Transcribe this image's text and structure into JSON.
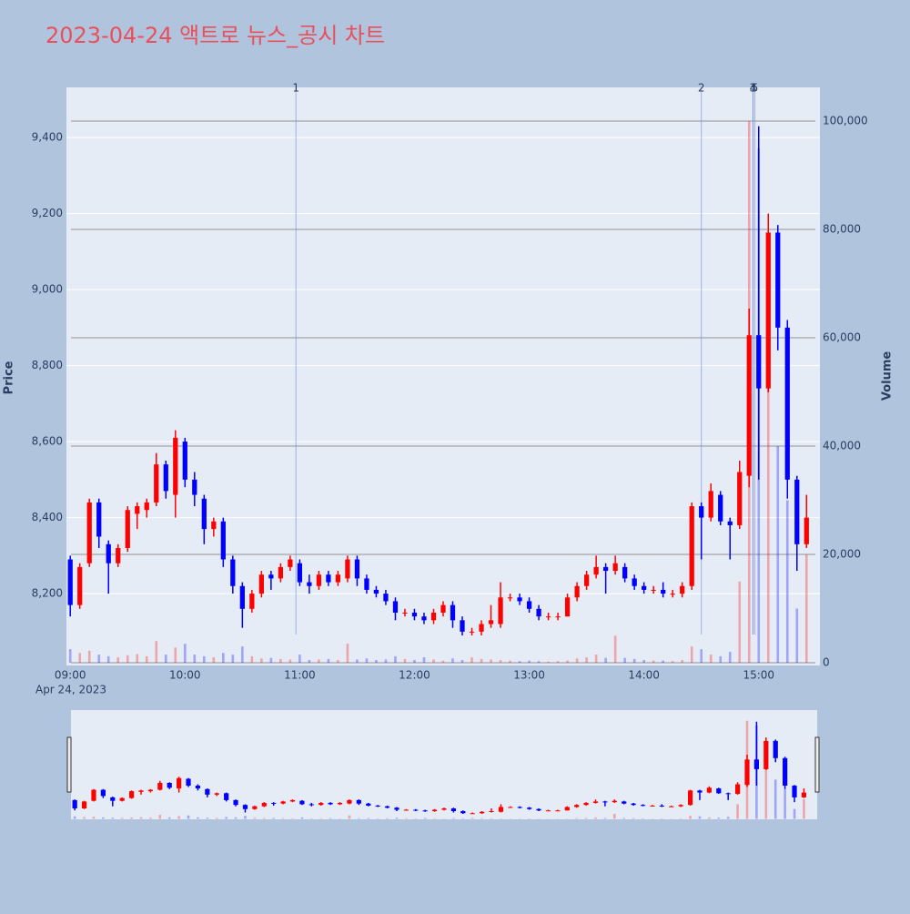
{
  "chart_data": {
    "type": "candlestick",
    "title": "2023-04-24 액트로 뉴스_공시 차트",
    "ylabel": "Price",
    "y2label": "Volume",
    "date_label": "Apr 24, 2023",
    "increasing_color": "#ff0000",
    "decreasing_color": "#0000ff",
    "x": [
      "09:00",
      "09:05",
      "09:10",
      "09:15",
      "09:20",
      "09:25",
      "09:30",
      "09:35",
      "09:40",
      "09:45",
      "09:50",
      "09:55",
      "10:00",
      "10:05",
      "10:10",
      "10:15",
      "10:20",
      "10:25",
      "10:30",
      "10:35",
      "10:40",
      "10:45",
      "10:50",
      "10:55",
      "11:00",
      "11:05",
      "11:10",
      "11:15",
      "11:20",
      "11:25",
      "11:30",
      "11:35",
      "11:40",
      "11:45",
      "11:50",
      "11:55",
      "12:00",
      "12:05",
      "12:10",
      "12:15",
      "12:20",
      "12:25",
      "12:30",
      "12:35",
      "12:40",
      "12:45",
      "12:50",
      "12:55",
      "13:00",
      "13:05",
      "13:10",
      "13:15",
      "13:20",
      "13:25",
      "13:30",
      "13:35",
      "13:40",
      "13:45",
      "13:50",
      "13:55",
      "14:00",
      "14:05",
      "14:10",
      "14:15",
      "14:20",
      "14:25",
      "14:30",
      "14:35",
      "14:40",
      "14:45",
      "14:50",
      "14:55",
      "15:00",
      "15:05",
      "15:10",
      "15:15",
      "15:20",
      "15:25"
    ],
    "open": [
      8290,
      8170,
      8280,
      8440,
      8330,
      8280,
      8320,
      8410,
      8420,
      8440,
      8540,
      8460,
      8600,
      8500,
      8450,
      8370,
      8390,
      8290,
      8220,
      8160,
      8200,
      8250,
      8240,
      8270,
      8280,
      8230,
      8220,
      8250,
      8230,
      8240,
      8290,
      8240,
      8210,
      8200,
      8180,
      8150,
      8150,
      8140,
      8130,
      8150,
      8170,
      8130,
      8100,
      8100,
      8120,
      8120,
      8190,
      8190,
      8180,
      8160,
      8140,
      8140,
      8140,
      8190,
      8220,
      8250,
      8270,
      8260,
      8270,
      8240,
      8220,
      8210,
      8210,
      8200,
      8200,
      8220,
      8430,
      8400,
      8460,
      8390,
      8380,
      8510,
      8880,
      8740,
      9150,
      8900,
      8500,
      8330
    ],
    "high": [
      8300,
      8280,
      8450,
      8450,
      8340,
      8330,
      8430,
      8440,
      8450,
      8570,
      8550,
      8630,
      8610,
      8520,
      8460,
      8400,
      8400,
      8300,
      8230,
      8210,
      8260,
      8260,
      8280,
      8300,
      8290,
      8250,
      8260,
      8260,
      8260,
      8300,
      8300,
      8250,
      8220,
      8210,
      8190,
      8160,
      8160,
      8150,
      8160,
      8180,
      8180,
      8140,
      8110,
      8130,
      8170,
      8230,
      8200,
      8200,
      8190,
      8170,
      8150,
      8150,
      8200,
      8230,
      8260,
      8300,
      8280,
      8300,
      8280,
      8250,
      8230,
      8220,
      8230,
      8210,
      8230,
      8440,
      8440,
      8490,
      8470,
      8400,
      8550,
      8950,
      9430,
      9200,
      9170,
      8920,
      8510,
      8460
    ],
    "low": [
      8140,
      8160,
      8270,
      8320,
      8200,
      8270,
      8310,
      8370,
      8400,
      8430,
      8450,
      8400,
      8480,
      8430,
      8330,
      8350,
      8270,
      8200,
      8110,
      8150,
      8190,
      8210,
      8230,
      8260,
      8220,
      8200,
      8210,
      8220,
      8220,
      8230,
      8220,
      8200,
      8190,
      8170,
      8130,
      8140,
      8130,
      8120,
      8120,
      8140,
      8110,
      8090,
      8090,
      8090,
      8110,
      8110,
      8180,
      8170,
      8150,
      8130,
      8130,
      8130,
      8140,
      8180,
      8210,
      8240,
      8200,
      8250,
      8230,
      8210,
      8200,
      8200,
      8190,
      8190,
      8190,
      8210,
      8290,
      8390,
      8380,
      8290,
      8370,
      8480,
      8500,
      8730,
      8840,
      8450,
      8260,
      8320
    ],
    "close": [
      8170,
      8270,
      8440,
      8350,
      8280,
      8320,
      8420,
      8430,
      8440,
      8540,
      8470,
      8610,
      8500,
      8460,
      8370,
      8390,
      8290,
      8220,
      8160,
      8200,
      8250,
      8240,
      8270,
      8290,
      8230,
      8220,
      8250,
      8230,
      8250,
      8290,
      8240,
      8210,
      8200,
      8180,
      8150,
      8150,
      8140,
      8130,
      8150,
      8170,
      8130,
      8100,
      8100,
      8120,
      8130,
      8190,
      8190,
      8180,
      8160,
      8140,
      8140,
      8140,
      8190,
      8220,
      8250,
      8270,
      8260,
      8280,
      8240,
      8220,
      8210,
      8210,
      8200,
      8200,
      8220,
      8430,
      8400,
      8470,
      8390,
      8380,
      8520,
      8880,
      8740,
      9150,
      8900,
      8500,
      8330,
      8400
    ],
    "volume": [
      2500,
      1800,
      2200,
      1500,
      1200,
      1000,
      1400,
      1600,
      1200,
      4000,
      1500,
      2800,
      3500,
      1500,
      1200,
      1000,
      1800,
      1500,
      3000,
      1200,
      800,
      900,
      700,
      600,
      1500,
      500,
      600,
      700,
      500,
      3500,
      600,
      800,
      500,
      600,
      1200,
      700,
      500,
      1000,
      600,
      400,
      800,
      500,
      1000,
      700,
      600,
      500,
      400,
      300,
      400,
      300,
      200,
      300,
      400,
      800,
      1000,
      1500,
      900,
      5000,
      900,
      700,
      500,
      400,
      400,
      300,
      500,
      3000,
      2500,
      1500,
      1200,
      2000,
      15000,
      100000,
      95000,
      70000,
      40000,
      30000,
      10000,
      20000
    ],
    "xlim": [
      "08:58",
      "15:32"
    ],
    "xticks": [
      "09:00",
      "10:00",
      "11:00",
      "12:00",
      "13:00",
      "14:00",
      "15:00"
    ],
    "ylim": [
      8011,
      9532
    ],
    "yticks": [
      {
        "value": 8200,
        "label": "8,200"
      },
      {
        "value": 8400,
        "label": "8,400"
      },
      {
        "value": 8600,
        "label": "8,600"
      },
      {
        "value": 8800,
        "label": "8,800"
      },
      {
        "value": 9000,
        "label": "9,000"
      },
      {
        "value": 9200,
        "label": "9,200"
      },
      {
        "value": 9400,
        "label": "9,400"
      }
    ],
    "y2lim": [
      -504,
      106220
    ],
    "y2ticks": [
      0,
      {
        "value": 20000,
        "label": "20,000"
      },
      {
        "value": 40000,
        "label": "40,000"
      },
      {
        "value": 60000,
        "label": "60,000"
      },
      {
        "value": 80000,
        "label": "80,000"
      },
      {
        "value": 100000,
        "label": "100,000"
      }
    ],
    "annotations": [
      {
        "x": "10:58",
        "label": "1"
      },
      {
        "x": "14:30",
        "label": "2"
      },
      {
        "x": "14:57",
        "label": "3"
      },
      {
        "x": "14:57",
        "label": "4"
      },
      {
        "x": "14:58",
        "label": "5"
      }
    ]
  }
}
